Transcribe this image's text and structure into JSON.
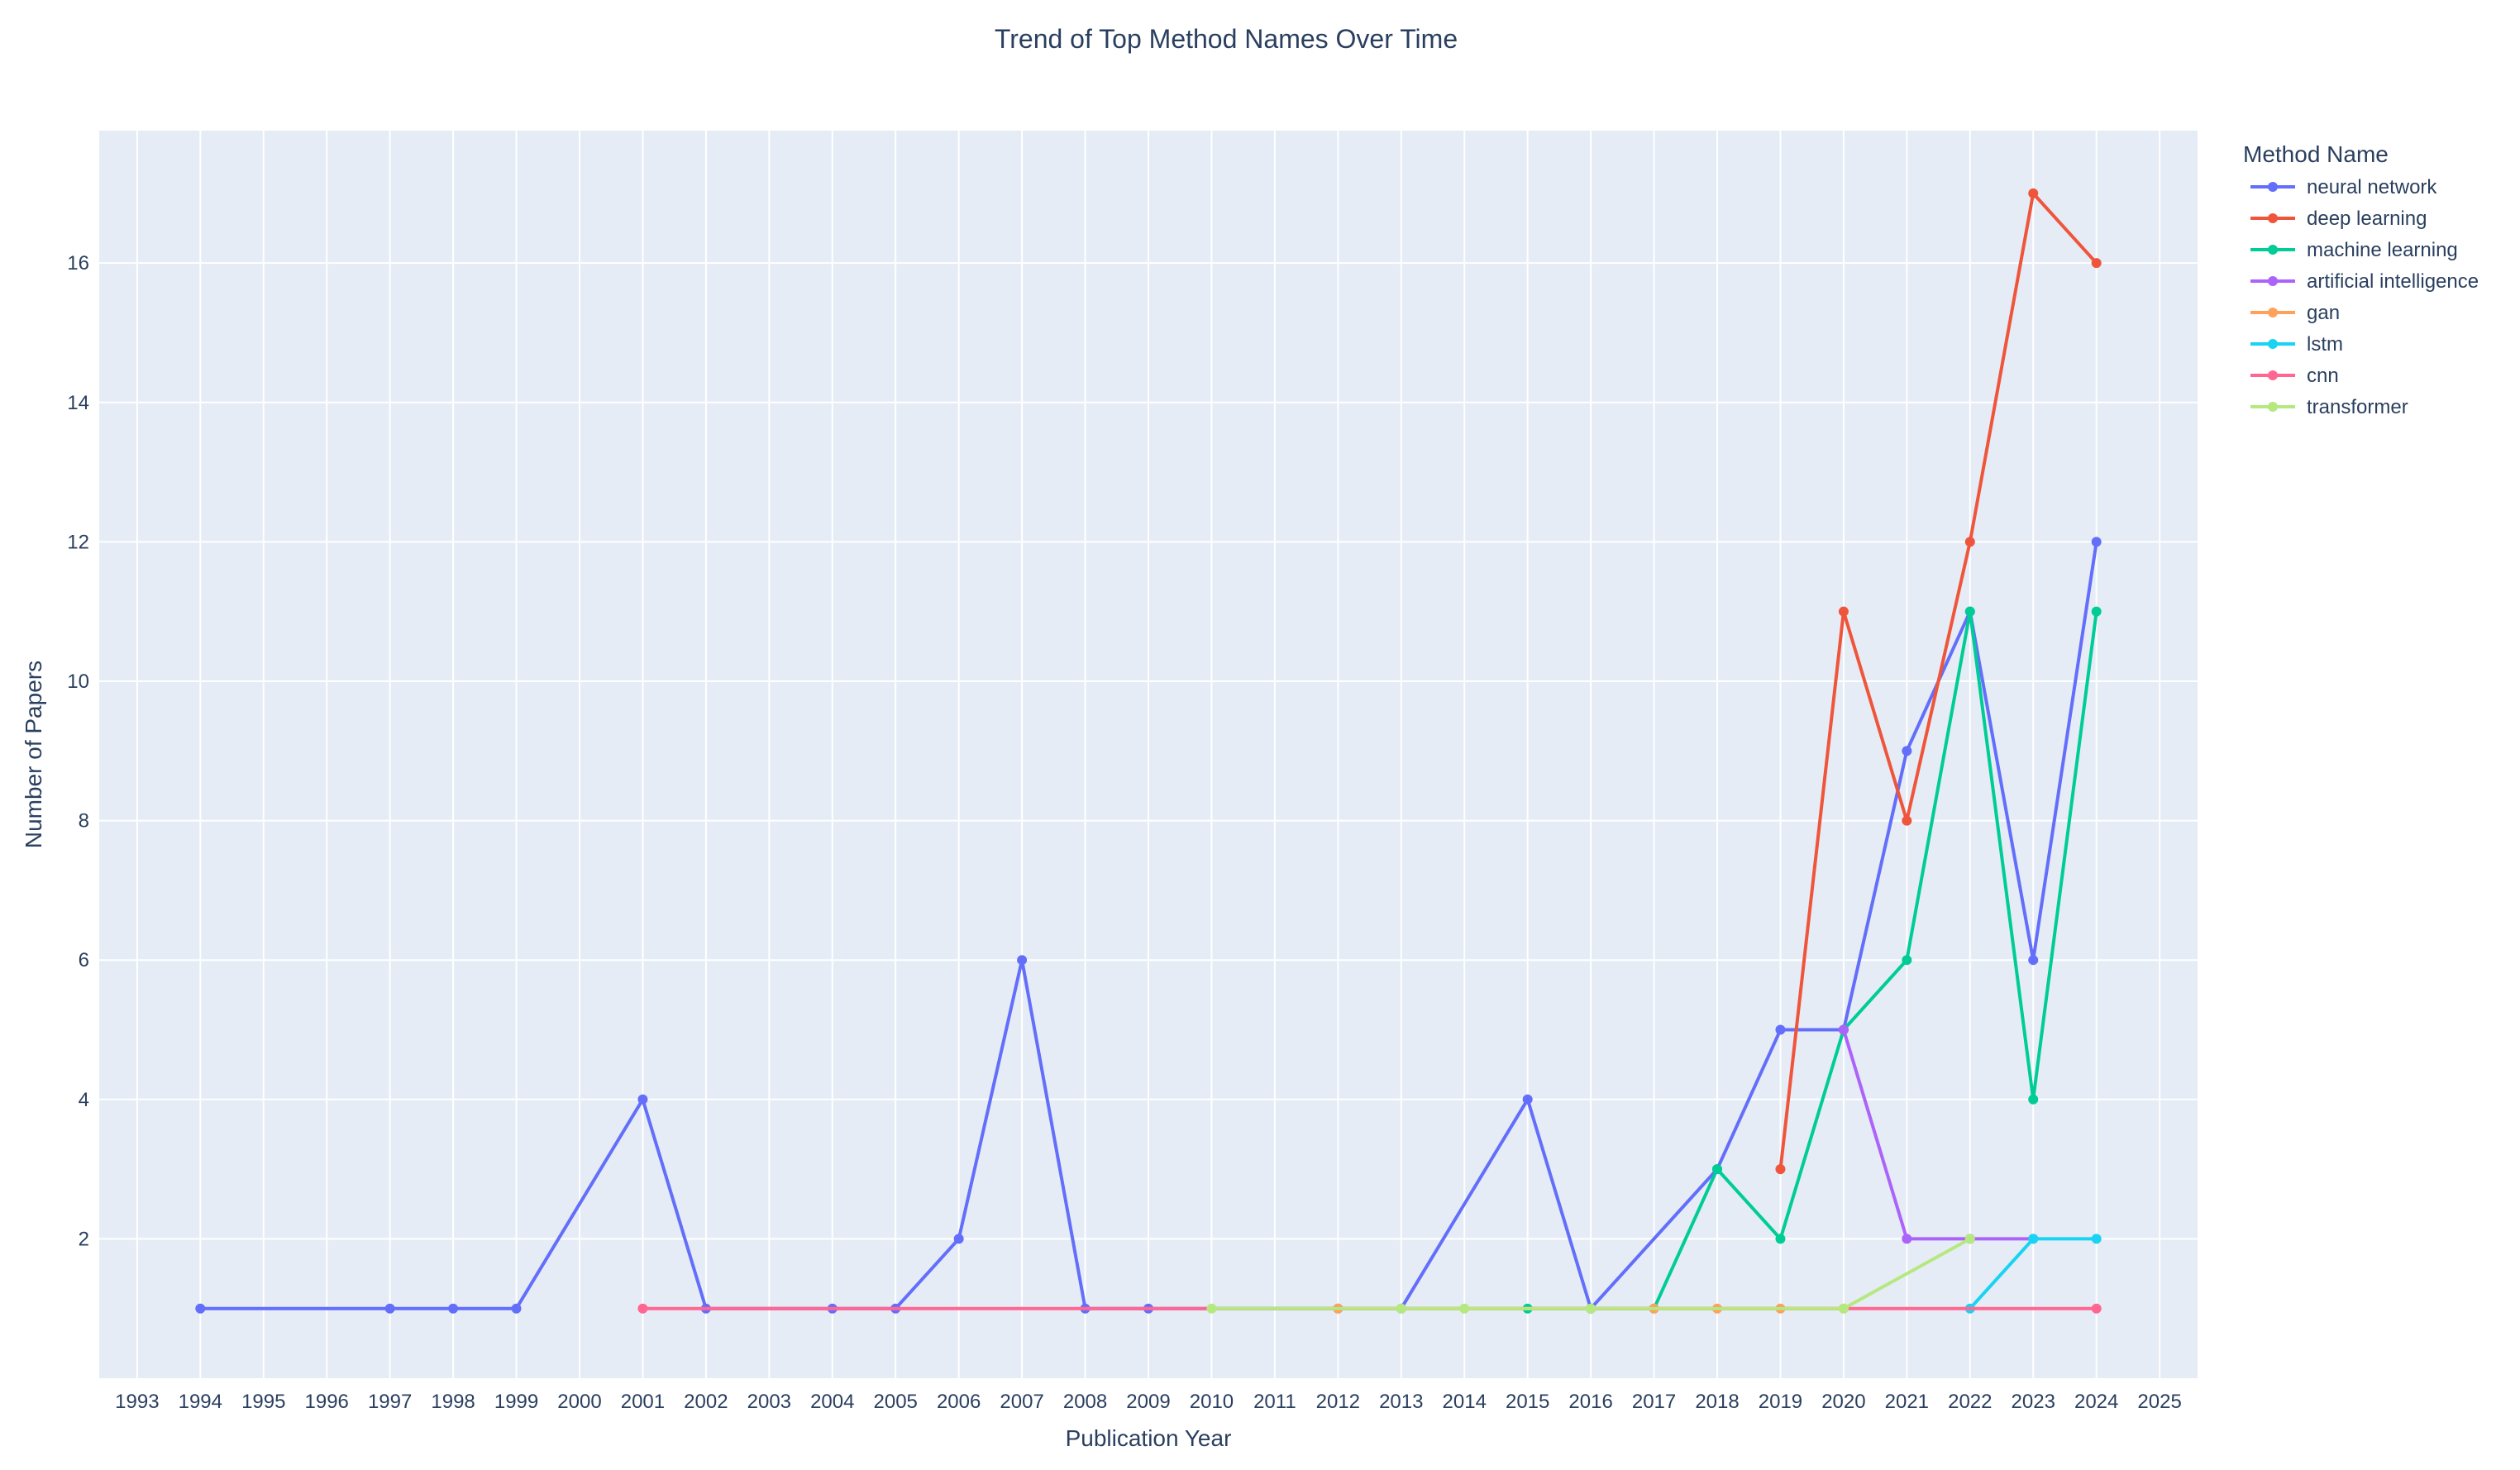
{
  "chart_data": {
    "type": "line",
    "title": "Trend of Top Method Names Over Time",
    "xlabel": "Publication Year",
    "ylabel": "Number of Papers",
    "xlim": [
      1992.4,
      2025.6
    ],
    "ylim": [
      0,
      17.9
    ],
    "x_ticks": [
      1993,
      1994,
      1995,
      1996,
      1997,
      1998,
      1999,
      2000,
      2001,
      2002,
      2003,
      2004,
      2005,
      2006,
      2007,
      2008,
      2009,
      2010,
      2011,
      2012,
      2013,
      2014,
      2015,
      2016,
      2017,
      2018,
      2019,
      2020,
      2021,
      2022,
      2023,
      2024,
      2025
    ],
    "y_ticks": [
      2,
      4,
      6,
      8,
      10,
      12,
      14,
      16
    ],
    "grid": true,
    "legend_title": "Method Name",
    "legend_position": "right",
    "series": [
      {
        "name": "neural network",
        "color": "#636efa",
        "x": [
          1994,
          1997,
          1998,
          1999,
          2001,
          2002,
          2004,
          2005,
          2006,
          2007,
          2008,
          2009,
          2012,
          2013,
          2015,
          2016,
          2018,
          2019,
          2020,
          2021,
          2022,
          2023,
          2024
        ],
        "y": [
          1,
          1,
          1,
          1,
          4,
          1,
          1,
          1,
          2,
          6,
          1,
          1,
          1,
          1,
          4,
          1,
          3,
          5,
          5,
          9,
          11,
          6,
          12
        ]
      },
      {
        "name": "deep learning",
        "color": "#ef553b",
        "x": [
          2019,
          2020,
          2021,
          2022,
          2023,
          2024
        ],
        "y": [
          3,
          11,
          8,
          12,
          17,
          16
        ]
      },
      {
        "name": "machine learning",
        "color": "#00cc96",
        "x": [
          2015,
          2016,
          2017,
          2018,
          2019,
          2020,
          2021,
          2022,
          2023,
          2024
        ],
        "y": [
          1,
          1,
          1,
          3,
          2,
          5,
          6,
          11,
          4,
          11
        ]
      },
      {
        "name": "artificial intelligence",
        "color": "#ab63fa",
        "x": [
          2020,
          2021,
          2022,
          2023
        ],
        "y": [
          5,
          2,
          2,
          2
        ]
      },
      {
        "name": "gan",
        "color": "#ffa15a",
        "x": [
          2012,
          2017,
          2018,
          2019,
          2020
        ],
        "y": [
          1,
          1,
          1,
          1,
          1
        ]
      },
      {
        "name": "lstm",
        "color": "#19d3f3",
        "x": [
          2022,
          2023,
          2024
        ],
        "y": [
          1,
          2,
          2
        ]
      },
      {
        "name": "cnn",
        "color": "#ff6692",
        "x": [
          2001,
          2024
        ],
        "y": [
          1,
          1
        ]
      },
      {
        "name": "transformer",
        "color": "#b6e880",
        "x": [
          2010,
          2013,
          2014,
          2016,
          2020,
          2022
        ],
        "y": [
          1,
          1,
          1,
          1,
          1,
          2
        ]
      }
    ]
  },
  "colors": {
    "plot_bg": "#e5ecf6",
    "grid": "#ffffff",
    "text": "#2a3f5f"
  }
}
